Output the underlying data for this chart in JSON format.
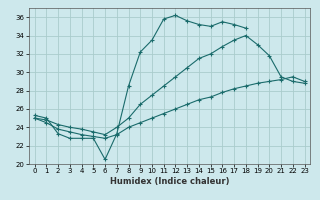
{
  "xlabel": "Humidex (Indice chaleur)",
  "xlim": [
    -0.5,
    23.5
  ],
  "ylim": [
    20,
    37
  ],
  "yticks": [
    20,
    22,
    24,
    26,
    28,
    30,
    32,
    34,
    36
  ],
  "xticks": [
    0,
    1,
    2,
    3,
    4,
    5,
    6,
    7,
    8,
    9,
    10,
    11,
    12,
    13,
    14,
    15,
    16,
    17,
    18,
    19,
    20,
    21,
    22,
    23
  ],
  "bg_color": "#cde8ec",
  "grid_color": "#aacccc",
  "line_color": "#1a6b6b",
  "series": [
    {
      "x": [
        0,
        1,
        2,
        3,
        4,
        5,
        6,
        7,
        8,
        9,
        10,
        11,
        12,
        13,
        14,
        15,
        16,
        17,
        18
      ],
      "y": [
        25.3,
        25.0,
        23.3,
        22.8,
        22.8,
        22.8,
        20.5,
        23.3,
        28.5,
        32.2,
        33.5,
        35.8,
        36.2,
        35.6,
        35.2,
        35.0,
        35.5,
        35.2,
        34.8
      ]
    },
    {
      "x": [
        0,
        1,
        2,
        3,
        4,
        5,
        6,
        7,
        8,
        9,
        10,
        11,
        12,
        13,
        14,
        15,
        16,
        17,
        18,
        19,
        20,
        21,
        22,
        23
      ],
      "y": [
        25.0,
        24.8,
        24.3,
        24.0,
        23.8,
        23.5,
        23.2,
        24.0,
        25.0,
        26.5,
        27.5,
        28.5,
        29.5,
        30.5,
        31.5,
        32.0,
        32.8,
        33.5,
        34.0,
        33.0,
        31.8,
        29.5,
        29.0,
        28.8
      ]
    },
    {
      "x": [
        0,
        1,
        2,
        3,
        4,
        5,
        6,
        7,
        8,
        9,
        10,
        11,
        12,
        13,
        14,
        15,
        16,
        17,
        18,
        19,
        20,
        21,
        22,
        23
      ],
      "y": [
        25.0,
        24.5,
        23.8,
        23.5,
        23.2,
        23.0,
        22.8,
        23.2,
        24.0,
        24.5,
        25.0,
        25.5,
        26.0,
        26.5,
        27.0,
        27.3,
        27.8,
        28.2,
        28.5,
        28.8,
        29.0,
        29.2,
        29.5,
        29.0
      ]
    }
  ]
}
